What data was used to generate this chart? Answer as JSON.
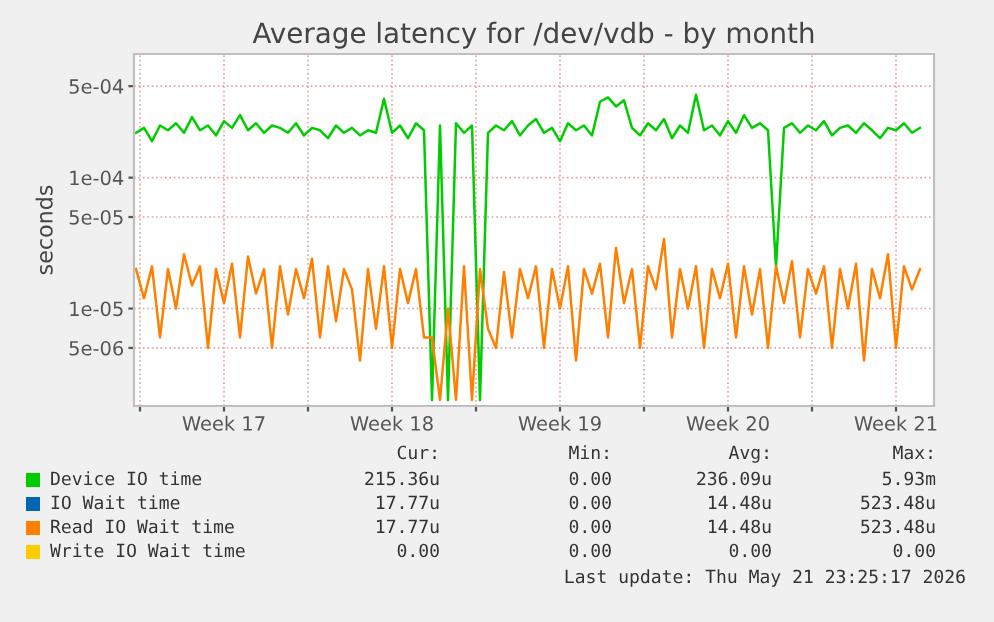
{
  "chart_data": {
    "type": "line",
    "title": "Average latency for /dev/vdb - by month",
    "ylabel": "seconds",
    "x": [
      "2026-04-19T20:00",
      "2026-04-20T04:00",
      "2026-04-20T12:00",
      "2026-04-20T20:00",
      "2026-04-21T04:00",
      "2026-04-21T12:00",
      "2026-04-21T20:00",
      "2026-04-22T04:00",
      "2026-04-22T12:00",
      "2026-04-22T20:00",
      "2026-04-23T04:00",
      "2026-04-23T12:00",
      "2026-04-23T20:00",
      "2026-04-24T04:00",
      "2026-04-24T12:00",
      "2026-04-24T20:00",
      "2026-04-25T04:00",
      "2026-04-25T12:00",
      "2026-04-25T20:00",
      "2026-04-26T04:00",
      "2026-04-26T12:00",
      "2026-04-26T20:00",
      "2026-04-27T04:00",
      "2026-04-27T12:00",
      "2026-04-27T20:00",
      "2026-04-28T04:00",
      "2026-04-28T12:00",
      "2026-04-28T20:00",
      "2026-04-29T04:00",
      "2026-04-29T12:00",
      "2026-04-29T20:00",
      "2026-04-30T04:00",
      "2026-04-30T12:00",
      "2026-04-30T20:00",
      "2026-05-01T04:00",
      "2026-05-01T12:00",
      "2026-05-01T20:00",
      "2026-05-02T04:00",
      "2026-05-02T12:00",
      "2026-05-02T20:00",
      "2026-05-03T04:00",
      "2026-05-03T12:00",
      "2026-05-03T20:00",
      "2026-05-04T04:00",
      "2026-05-04T12:00",
      "2026-05-04T20:00",
      "2026-05-05T04:00",
      "2026-05-05T12:00",
      "2026-05-05T20:00",
      "2026-05-06T04:00",
      "2026-05-06T12:00",
      "2026-05-06T20:00",
      "2026-05-07T04:00",
      "2026-05-07T12:00",
      "2026-05-07T20:00",
      "2026-05-08T04:00",
      "2026-05-08T12:00",
      "2026-05-08T20:00",
      "2026-05-09T04:00",
      "2026-05-09T12:00",
      "2026-05-09T20:00",
      "2026-05-10T04:00",
      "2026-05-10T12:00",
      "2026-05-10T20:00",
      "2026-05-11T04:00",
      "2026-05-11T12:00",
      "2026-05-11T20:00",
      "2026-05-12T04:00",
      "2026-05-12T12:00",
      "2026-05-12T20:00",
      "2026-05-13T04:00",
      "2026-05-13T12:00",
      "2026-05-13T20:00",
      "2026-05-14T04:00",
      "2026-05-14T12:00",
      "2026-05-14T20:00",
      "2026-05-15T04:00",
      "2026-05-15T12:00",
      "2026-05-15T20:00",
      "2026-05-16T04:00",
      "2026-05-16T12:00",
      "2026-05-16T20:00",
      "2026-05-17T04:00",
      "2026-05-17T12:00",
      "2026-05-17T20:00",
      "2026-05-18T04:00",
      "2026-05-18T12:00",
      "2026-05-18T20:00",
      "2026-05-19T04:00",
      "2026-05-19T12:00",
      "2026-05-19T20:00",
      "2026-05-20T04:00",
      "2026-05-20T12:00",
      "2026-05-20T20:00",
      "2026-05-21T04:00",
      "2026-05-21T12:00",
      "2026-05-21T20:00",
      "2026-05-22T04:00",
      "2026-05-22T12:00"
    ],
    "series": [
      {
        "name": "Device IO time",
        "color": "#00cc00",
        "values": [
          0.00022,
          0.00024,
          0.00019,
          0.00025,
          0.00023,
          0.00026,
          0.00022,
          0.00029,
          0.00023,
          0.00025,
          0.00021,
          0.00027,
          0.00024,
          0.0003,
          0.00023,
          0.00026,
          0.00022,
          0.00025,
          0.00024,
          0.00022,
          0.00026,
          0.00021,
          0.00024,
          0.00023,
          0.0002,
          0.00025,
          0.00022,
          0.00024,
          0.00021,
          0.00023,
          0.00022,
          0.0004,
          0.00022,
          0.00025,
          0.0002,
          0.00026,
          0.00023,
          2e-06,
          0.00025,
          2e-06,
          0.00026,
          0.00022,
          0.00025,
          2e-06,
          0.00022,
          0.00025,
          0.00023,
          0.00027,
          0.00021,
          0.00025,
          0.00028,
          0.00022,
          0.00024,
          0.00019,
          0.00026,
          0.00023,
          0.00025,
          0.00021,
          0.00038,
          0.00041,
          0.00035,
          0.00039,
          0.00024,
          0.00021,
          0.00026,
          0.00023,
          0.00028,
          0.0002,
          0.00025,
          0.00022,
          0.00043,
          0.00023,
          0.00025,
          0.00021,
          0.00027,
          0.00022,
          0.0003,
          0.00024,
          0.00026,
          0.00023,
          2.1e-05,
          0.00024,
          0.00026,
          0.00022,
          0.00025,
          0.00023,
          0.00027,
          0.00021,
          0.00024,
          0.00025,
          0.00022,
          0.00026,
          0.00023,
          0.0002,
          0.00024,
          0.00023,
          0.00026,
          0.00022,
          0.00024
        ]
      },
      {
        "name": "IO Wait time",
        "color": "#0066b3",
        "values": [
          null,
          null,
          null,
          null,
          null,
          null,
          null,
          null,
          null,
          null,
          null,
          null,
          null,
          null,
          null,
          null,
          null,
          null,
          null,
          null,
          null,
          null,
          null,
          null,
          null,
          null,
          null,
          null,
          null,
          null,
          null,
          null,
          null,
          null,
          null,
          null,
          null,
          null,
          null,
          null,
          null,
          null,
          null,
          null,
          null,
          null,
          null,
          null,
          null,
          null,
          null,
          null,
          null,
          null,
          null,
          null,
          null,
          null,
          null,
          null,
          null,
          null,
          null,
          null,
          null,
          null,
          null,
          null,
          null,
          null,
          null,
          null,
          null,
          null,
          null,
          null,
          null,
          null,
          null,
          null,
          null,
          null,
          null,
          null,
          null,
          null,
          null,
          null,
          null,
          null,
          null,
          null,
          null,
          null,
          null,
          null,
          null,
          null,
          null
        ]
      },
      {
        "name": "Read IO Wait time",
        "color": "#ff8000",
        "values": [
          2e-05,
          1.2e-05,
          2.1e-05,
          6e-06,
          2e-05,
          1e-05,
          2.6e-05,
          1.5e-05,
          2.1e-05,
          5e-06,
          2e-05,
          1.1e-05,
          2.2e-05,
          6e-06,
          2.5e-05,
          1.3e-05,
          2e-05,
          5e-06,
          2.1e-05,
          9e-06,
          2e-05,
          1.2e-05,
          2.4e-05,
          6e-06,
          2.1e-05,
          8e-06,
          2e-05,
          1.4e-05,
          4e-06,
          2e-05,
          7e-06,
          2.1e-05,
          5e-06,
          2e-05,
          1.1e-05,
          2e-05,
          6e-06,
          6e-06,
          2e-06,
          1e-05,
          2e-06,
          2.1e-05,
          2e-06,
          2e-05,
          7e-06,
          5e-06,
          1.9e-05,
          6e-06,
          2e-05,
          1.2e-05,
          2.1e-05,
          5e-06,
          2e-05,
          1e-05,
          2.1e-05,
          4e-06,
          2e-05,
          1.3e-05,
          2.2e-05,
          6e-06,
          2.9e-05,
          1.1e-05,
          2e-05,
          5e-06,
          2.1e-05,
          1.4e-05,
          3.4e-05,
          6e-06,
          2e-05,
          1e-05,
          2.1e-05,
          5e-06,
          2e-05,
          1.2e-05,
          2.2e-05,
          6e-06,
          2.1e-05,
          9e-06,
          2e-05,
          5e-06,
          2.1e-05,
          1.1e-05,
          2.3e-05,
          6e-06,
          2e-05,
          1.3e-05,
          2.1e-05,
          5e-06,
          2e-05,
          1e-05,
          2.2e-05,
          4e-06,
          2e-05,
          1.2e-05,
          2.6e-05,
          5e-06,
          2.1e-05,
          1.4e-05,
          2e-05
        ]
      },
      {
        "name": "Write IO Wait time",
        "color": "#ffcc00",
        "values": [
          null,
          null,
          null,
          null,
          null,
          null,
          null,
          null,
          null,
          null,
          null,
          null,
          null,
          null,
          null,
          null,
          null,
          null,
          null,
          null,
          null,
          null,
          null,
          null,
          null,
          null,
          null,
          null,
          null,
          null,
          null,
          null,
          null,
          null,
          null,
          null,
          null,
          null,
          null,
          null,
          null,
          null,
          null,
          null,
          null,
          null,
          null,
          null,
          null,
          null,
          null,
          null,
          null,
          null,
          null,
          null,
          null,
          null,
          null,
          null,
          null,
          null,
          null,
          null,
          null,
          null,
          null,
          null,
          null,
          null,
          null,
          null,
          null,
          null,
          null,
          null,
          null,
          null,
          null,
          null,
          null,
          null,
          null,
          null,
          null,
          null,
          null,
          null,
          null,
          null,
          null,
          null,
          null,
          null,
          null,
          null,
          null,
          null,
          null
        ]
      }
    ],
    "log": "y",
    "ylim": [
      1.8e-06,
      0.00088
    ],
    "yticks": [
      {
        "value": 5e-06,
        "label": "5e-06"
      },
      {
        "value": 1e-05,
        "label": "1e-05"
      },
      {
        "value": 5e-05,
        "label": "5e-05"
      },
      {
        "value": 0.0001,
        "label": "1e-04"
      },
      {
        "value": 0.0005,
        "label": "5e-04"
      }
    ],
    "xlim": [
      "2026-04-19T18:00",
      "2026-05-23T02:00"
    ],
    "xticks": [
      {
        "value": "2026-04-20",
        "label": null
      },
      {
        "value": "2026-04-23T12:00",
        "label": "Week 17"
      },
      {
        "value": "2026-04-27",
        "label": null
      },
      {
        "value": "2026-04-30T12:00",
        "label": "Week 18"
      },
      {
        "value": "2026-05-04",
        "label": null
      },
      {
        "value": "2026-05-07T12:00",
        "label": "Week 19"
      },
      {
        "value": "2026-05-11",
        "label": null
      },
      {
        "value": "2026-05-14T12:00",
        "label": "Week 20"
      },
      {
        "value": "2026-05-18",
        "label": null
      },
      {
        "value": "2026-05-21T12:00",
        "label": "Week 21"
      }
    ],
    "grid": true,
    "legend": "bottom",
    "annotations": [
      "Cur:",
      "Min:",
      "Avg:",
      "Max:",
      "215.36u",
      "0.00",
      "236.09u",
      "5.93m",
      "17.77u",
      "0.00",
      "14.48u",
      "523.48u",
      "17.77u",
      "0.00",
      "14.48u",
      "523.48u",
      "0.00",
      "0.00",
      "0.00",
      "0.00",
      "Last update: Thu May 21 23:25:17 2026"
    ]
  }
}
